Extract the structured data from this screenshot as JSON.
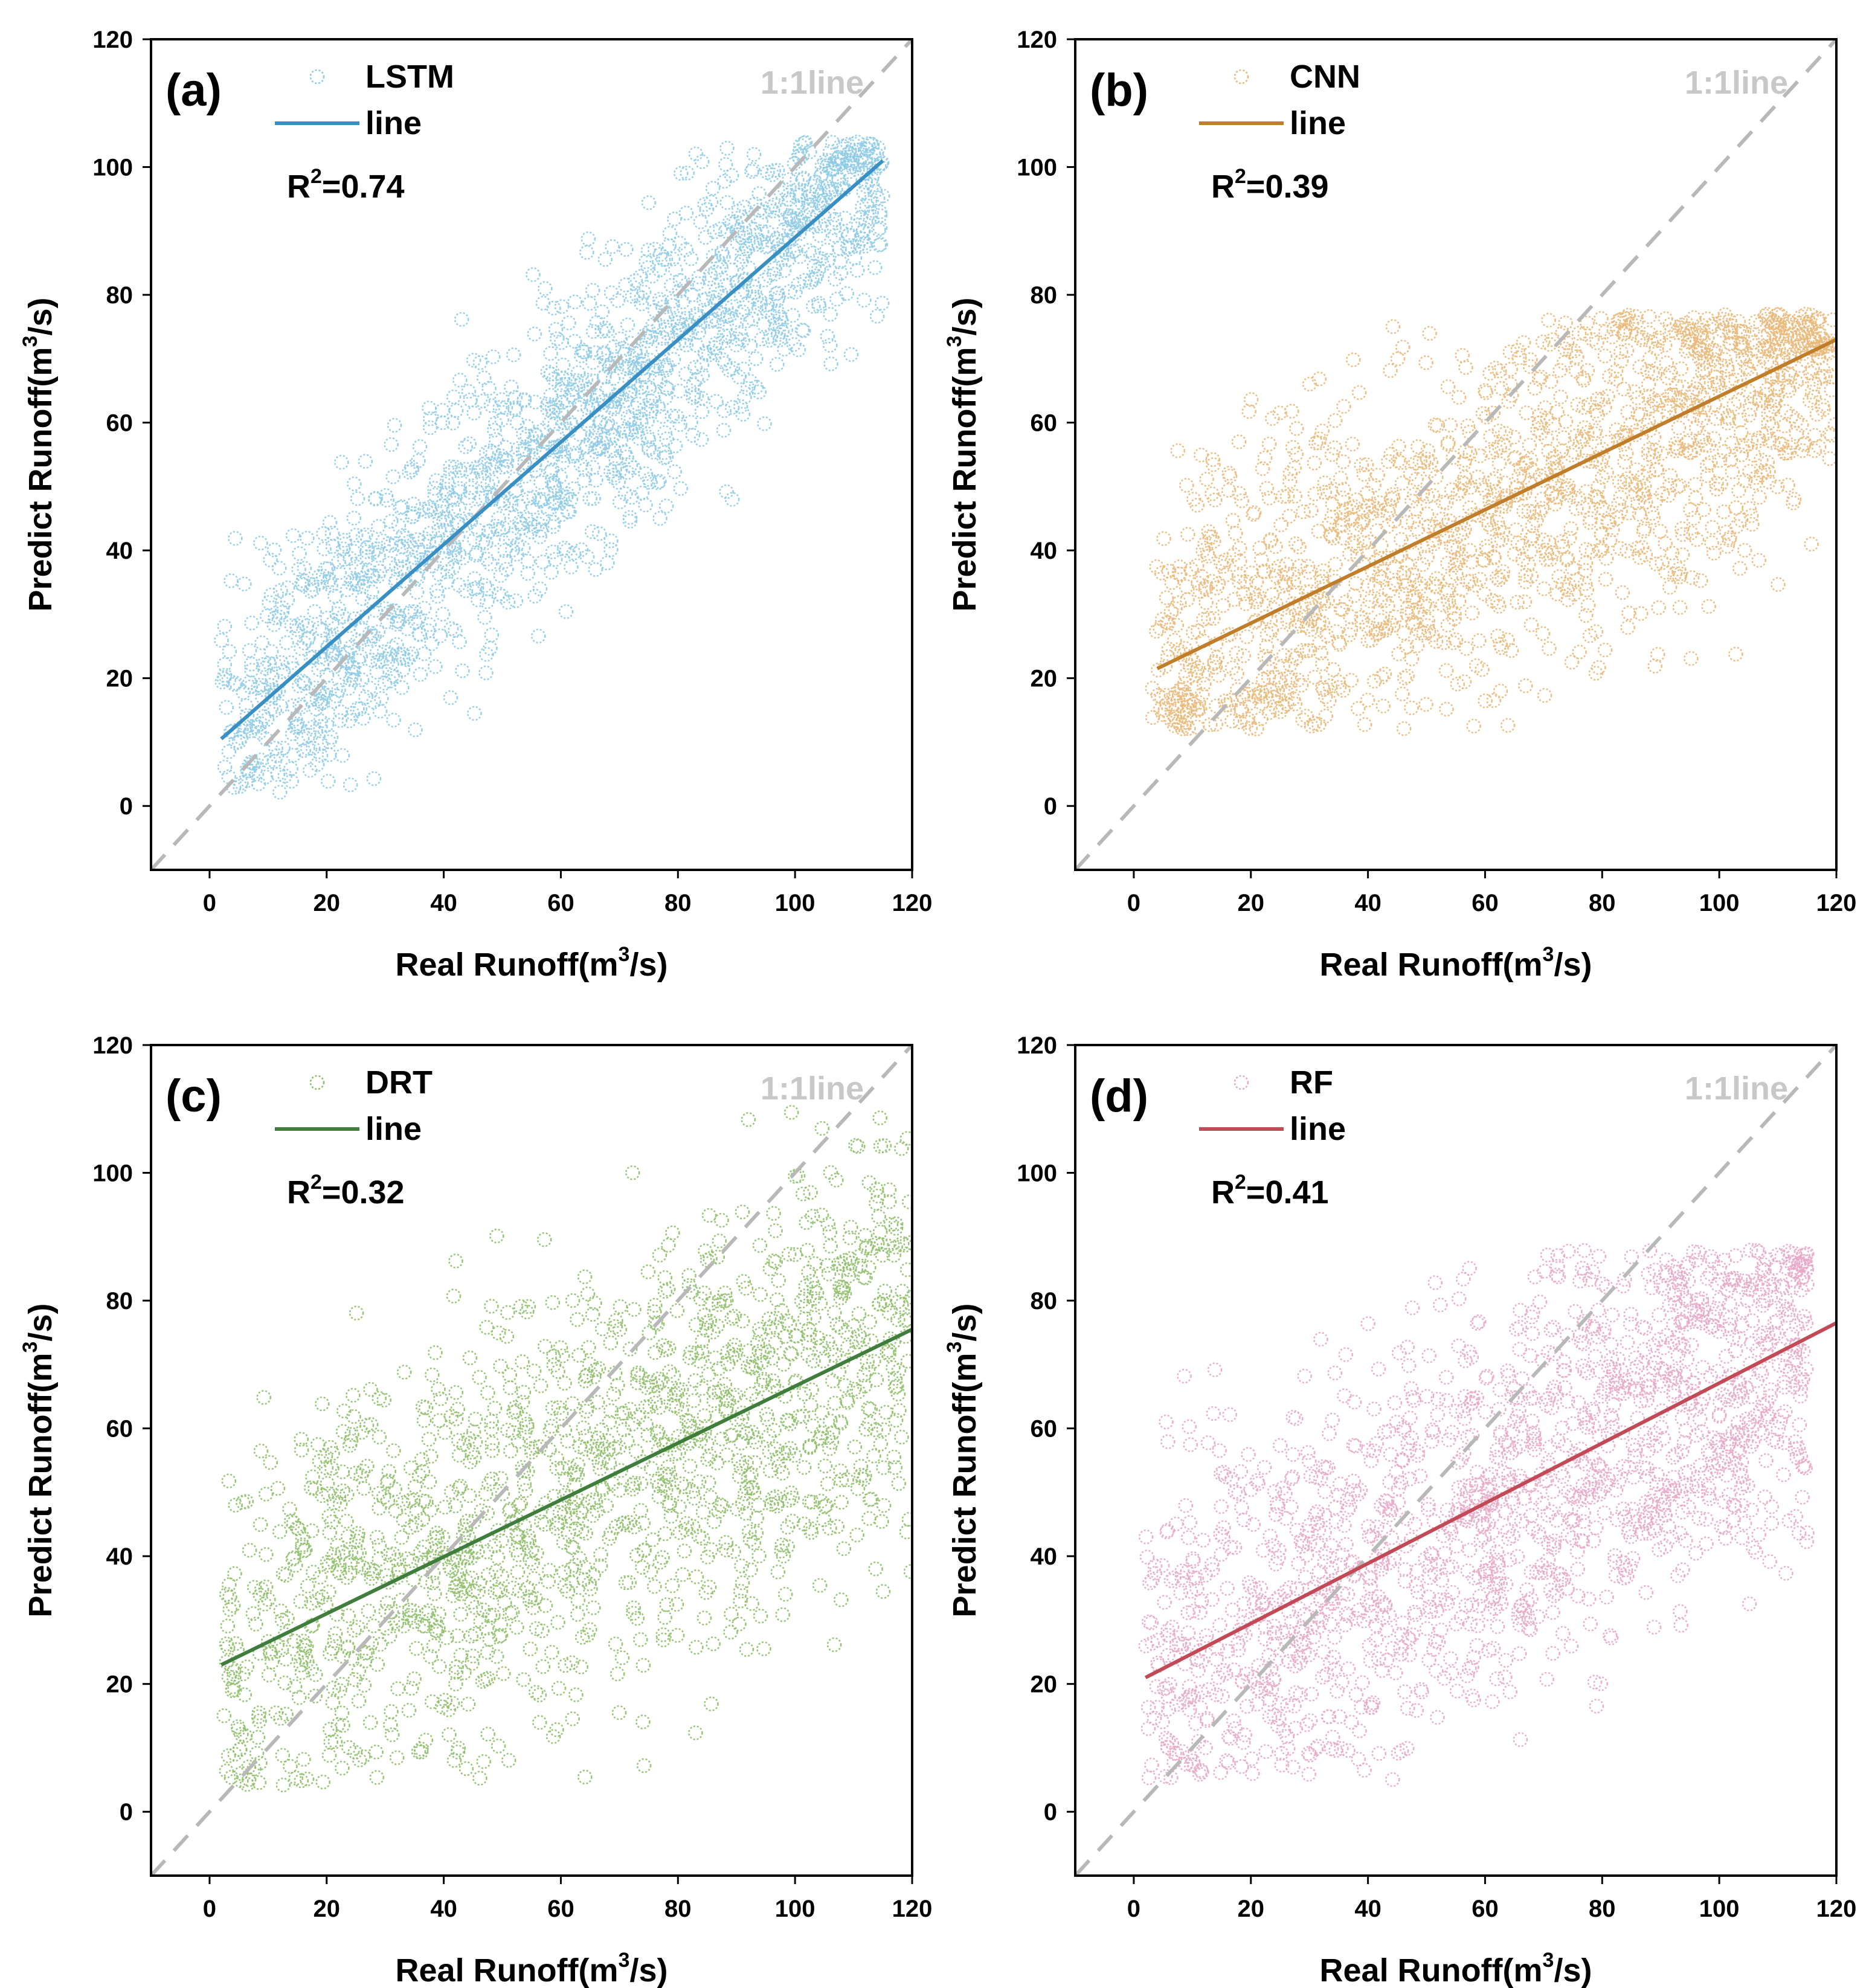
{
  "figure": {
    "panels": [
      {
        "id": "a",
        "label": "(a)",
        "color": "#3a8fc2",
        "legend_series": "LSTM",
        "legend_line": "line",
        "r2_text": "R2=0.74",
        "r2_prefix": "R",
        "r2_sup": "2",
        "r2_value": "=0.74",
        "oneone_label": "1:1line",
        "xlabel": "Real Runoff(m3/s)",
        "ylabel": "Predict Runoff(m3/s)",
        "label_parts": {
          "pre": "Real Runoff(m",
          "sup": "3",
          "post": "/s)"
        },
        "ylabel_parts": {
          "pre": "Predict Runoff(m",
          "sup": "3",
          "post": "/s)"
        }
      },
      {
        "id": "b",
        "label": "(b)",
        "color": "#c07d2a",
        "legend_series": "CNN",
        "legend_line": "line",
        "r2_text": "R2=0.39",
        "r2_prefix": "R",
        "r2_sup": "2",
        "r2_value": "=0.39",
        "oneone_label": "1:1line",
        "xlabel": "Real Runoff(m3/s)",
        "ylabel": "Predict Runoff(m3/s)",
        "label_parts": {
          "pre": "Real Runoff(m",
          "sup": "3",
          "post": "/s)"
        },
        "ylabel_parts": {
          "pre": "Predict Runoff(m",
          "sup": "3",
          "post": "/s)"
        }
      },
      {
        "id": "c",
        "label": "(c)",
        "color": "#3e7d3b",
        "legend_series": "DRT",
        "legend_line": "line",
        "r2_text": "R2=0.32",
        "r2_prefix": "R",
        "r2_sup": "2",
        "r2_value": "=0.32",
        "oneone_label": "1:1line",
        "xlabel": "Real Runoff(m3/s)",
        "ylabel": "Predict Runoff(m3/s)",
        "label_parts": {
          "pre": "Real Runoff(m",
          "sup": "3",
          "post": "/s)"
        },
        "ylabel_parts": {
          "pre": "Predict Runoff(m",
          "sup": "3",
          "post": "/s)"
        }
      },
      {
        "id": "d",
        "label": "(d)",
        "color": "#c24a57",
        "legend_series": "RF",
        "legend_line": "line",
        "r2_text": "R2=0.41",
        "r2_prefix": "R",
        "r2_sup": "2",
        "r2_value": "=0.41",
        "oneone_label": "1:1line",
        "xlabel": "Real Runoff(m3/s)",
        "ylabel": "Predict Runoff(m3/s)",
        "label_parts": {
          "pre": "Real Runoff(m",
          "sup": "3",
          "post": "/s)"
        },
        "ylabel_parts": {
          "pre": "Predict Runoff(m",
          "sup": "3",
          "post": "/s)"
        }
      }
    ]
  },
  "chart_data": [
    {
      "type": "scatter",
      "panel": "(a)",
      "series_name": "LSTM",
      "marker_color": "#8fcbe6",
      "line_color": "#3a8fc2",
      "xlabel": "Real Runoff(m3/s)",
      "ylabel": "Predict Runoff(m3/s)",
      "xlim": [
        -10,
        120
      ],
      "ylim": [
        -10,
        120
      ],
      "xticks": [
        0,
        20,
        40,
        60,
        80,
        100,
        120
      ],
      "yticks": [
        0,
        20,
        40,
        60,
        80,
        100,
        120
      ],
      "r_squared": 0.74,
      "fit_line": {
        "x": [
          2,
          115
        ],
        "y": [
          10.5,
          101
        ]
      },
      "one_to_one_line": {
        "x": [
          -10,
          120
        ],
        "y": [
          -10,
          120
        ]
      },
      "point_cloud": {
        "n": 1400,
        "x_range": [
          2,
          115
        ],
        "slope": 0.8,
        "intercept": 9,
        "noise_sd": 11,
        "y_min": 2,
        "y_max": 104,
        "seed": 11
      }
    },
    {
      "type": "scatter",
      "panel": "(b)",
      "series_name": "CNN",
      "marker_color": "#e9b97a",
      "line_color": "#c07d2a",
      "xlabel": "Real Runoff(m3/s)",
      "ylabel": "Predict Runoff(m3/s)",
      "xlim": [
        -10,
        120
      ],
      "ylim": [
        -10,
        120
      ],
      "xticks": [
        0,
        20,
        40,
        60,
        80,
        100,
        120
      ],
      "yticks": [
        0,
        20,
        40,
        60,
        80,
        100,
        120
      ],
      "r_squared": 0.39,
      "fit_line": {
        "x": [
          4,
          120
        ],
        "y": [
          21.5,
          73
        ]
      },
      "one_to_one_line": {
        "x": [
          -10,
          120
        ],
        "y": [
          -10,
          120
        ]
      },
      "point_cloud": {
        "n": 1400,
        "x_range": [
          3,
          120
        ],
        "slope": 0.444,
        "intercept": 19.7,
        "noise_sd": 14,
        "y_min": 12,
        "y_max": 77,
        "seed": 23
      }
    },
    {
      "type": "scatter",
      "panel": "(c)",
      "series_name": "DRT",
      "marker_color": "#8fbf6a",
      "line_color": "#3e7d3b",
      "xlabel": "Real Runoff(m3/s)",
      "ylabel": "Predict Runoff(m3/s)",
      "xlim": [
        -10,
        120
      ],
      "ylim": [
        -10,
        120
      ],
      "xticks": [
        0,
        20,
        40,
        60,
        80,
        100,
        120
      ],
      "yticks": [
        0,
        20,
        40,
        60,
        80,
        100,
        120
      ],
      "r_squared": 0.32,
      "fit_line": {
        "x": [
          2,
          120
        ],
        "y": [
          23,
          75.5
        ]
      },
      "one_to_one_line": {
        "x": [
          -10,
          120
        ],
        "y": [
          -10,
          120
        ]
      },
      "point_cloud": {
        "n": 1300,
        "x_range": [
          2,
          120
        ],
        "slope": 0.445,
        "intercept": 22,
        "noise_sd": 17,
        "y_min": 4,
        "y_max": 110,
        "seed": 37
      }
    },
    {
      "type": "scatter",
      "panel": "(d)",
      "series_name": "RF",
      "marker_color": "#e7a8c8",
      "line_color": "#c24a57",
      "xlabel": "Real Runoff(m3/s)",
      "ylabel": "Predict Runoff(m3/s)",
      "xlim": [
        -10,
        120
      ],
      "ylim": [
        -10,
        120
      ],
      "xticks": [
        0,
        20,
        40,
        60,
        80,
        100,
        120
      ],
      "yticks": [
        0,
        20,
        40,
        60,
        80,
        100,
        120
      ],
      "r_squared": 0.41,
      "fit_line": {
        "x": [
          2,
          120
        ],
        "y": [
          21,
          76.5
        ]
      },
      "one_to_one_line": {
        "x": [
          -10,
          120
        ],
        "y": [
          -10,
          120
        ]
      },
      "point_cloud": {
        "n": 1400,
        "x_range": [
          2,
          115
        ],
        "slope": 0.47,
        "intercept": 20,
        "noise_sd": 16,
        "y_min": 5,
        "y_max": 88,
        "seed": 53
      }
    }
  ]
}
